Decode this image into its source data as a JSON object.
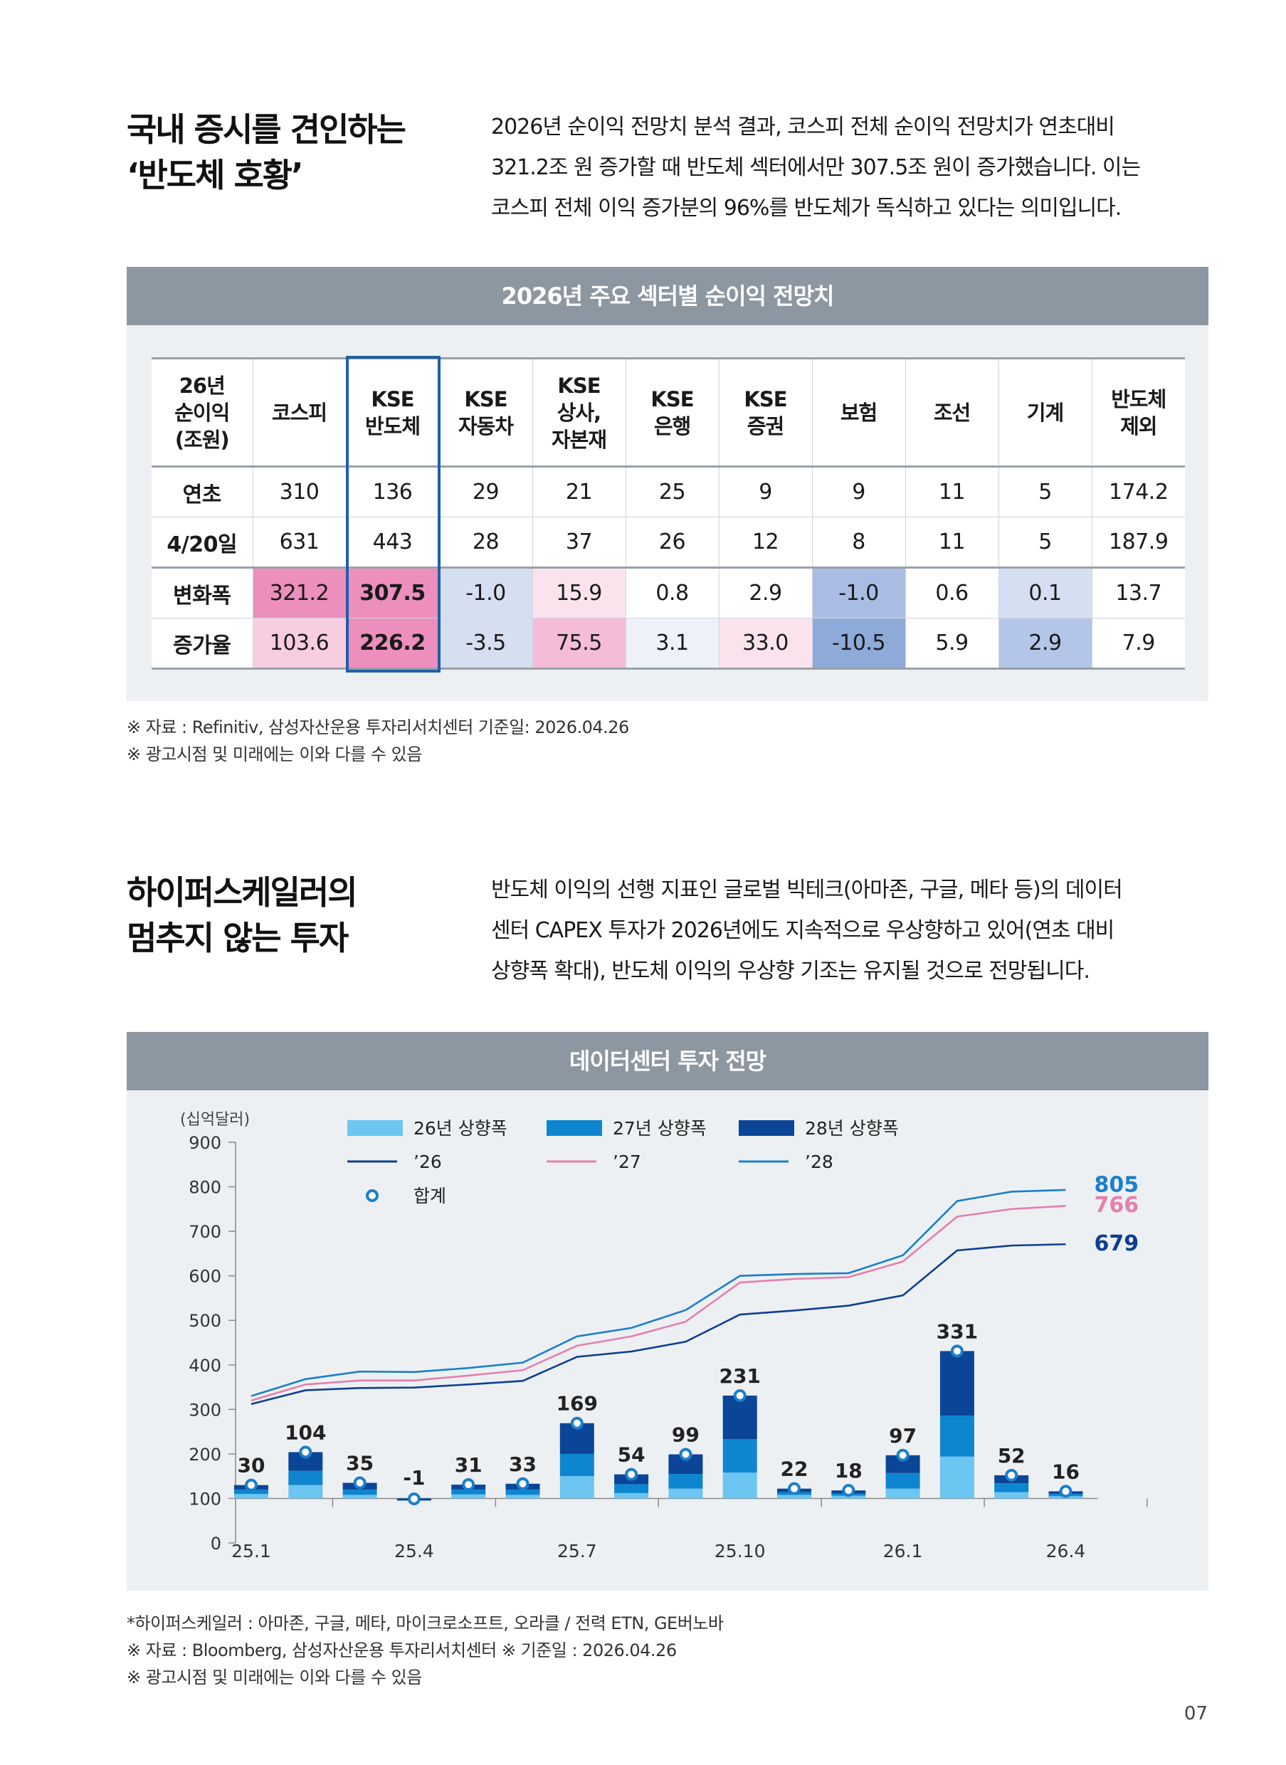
{
  "section1": {
    "heading": [
      "국내 증시를 견인하는",
      "‘반도체 호황’"
    ],
    "intro": [
      "2026년 순이익 전망치 분석 결과, 코스피 전체 순이익 전망치가 연초대비",
      "321.2조 원 증가할 때 반도체 섹터에서만 307.5조 원이 증가했습니다. 이는",
      "코스피 전체 이익 증가분의 96%를 반도체가 독식하고 있다는 의미입니다."
    ],
    "panel_title": "2026년 주요 섹터별 순이익 전망치",
    "table": {
      "corner": [
        "26년",
        "순이익",
        "(조원)"
      ],
      "columns": [
        [
          "코스피"
        ],
        [
          "KSE",
          "반도체"
        ],
        [
          "KSE",
          "자동차"
        ],
        [
          "KSE",
          "상사,",
          "자본재"
        ],
        [
          "KSE",
          "은행"
        ],
        [
          "KSE",
          "증권"
        ],
        [
          "보험"
        ],
        [
          "조선"
        ],
        [
          "기계"
        ],
        [
          "반도체",
          "제외"
        ]
      ],
      "rows": [
        {
          "label": "연초",
          "values": [
            "310",
            "136",
            "29",
            "21",
            "25",
            "9",
            "9",
            "11",
            "5",
            "174.2"
          ]
        },
        {
          "label": "4/20일",
          "values": [
            "631",
            "443",
            "28",
            "37",
            "26",
            "12",
            "8",
            "11",
            "5",
            "187.9"
          ]
        },
        {
          "label": "변화폭",
          "values": [
            "321.2",
            "307.5",
            "-1.0",
            "15.9",
            "0.8",
            "2.9",
            "-1.0",
            "0.6",
            "0.1",
            "13.7"
          ],
          "colors": [
            "#ec8fbd",
            "#ec8fbd",
            "#d6dff1",
            "#fbe3ee",
            "#ffffff",
            "#ffffff",
            "#a9bde4",
            "#ffffff",
            "#d6dff1",
            "#ffffff"
          ]
        },
        {
          "label": "증가율",
          "values": [
            "103.6",
            "226.2",
            "-3.5",
            "75.5",
            "3.1",
            "33.0",
            "-10.5",
            "5.9",
            "2.9",
            "7.9"
          ],
          "colors": [
            "#f8cde0",
            "#ec8fbd",
            "#d6dff1",
            "#f5bcd7",
            "#eef1f9",
            "#fbe3ee",
            "#8eaad9",
            "#ffffff",
            "#b3c5e8",
            "#ffffff"
          ]
        }
      ]
    },
    "notes": [
      "※ 자료 : Refinitiv, 삼성자산운용 투자리서치센터  기준일: 2026.04.26",
      "※ 광고시점 및 미래에는 이와 다를 수 있음"
    ]
  },
  "section2": {
    "heading": [
      "하이퍼스케일러의",
      "멈추지 않는 투자"
    ],
    "intro": [
      "반도체 이익의 선행 지표인 글로벌 빅테크(아마존, 구글, 메타 등)의 데이터",
      "센터 CAPEX 투자가 2026년에도 지속적으로 우상향하고 있어(연초 대비",
      "상향폭 확대), 반도체 이익의 우상향 기조는 유지될 것으로 전망됩니다."
    ],
    "panel_title": "데이터센터 투자 전망",
    "notes": [
      "*하이퍼스케일러 : 아마존, 구글, 메타, 마이크로소프트, 오라클 / 전력 ETN, GE버노바",
      "※ 자료 : Bloomberg, 삼성자산운용 투자리서치센터  ※ 기준일 : 2026.04.26",
      "※ 광고시점 및 미래에는 이와 다를 수 있음"
    ]
  },
  "chart_data": {
    "type": "bar",
    "ylabel": "(십억달러)",
    "ylim": [
      0,
      900
    ],
    "yticks": [
      0,
      100,
      200,
      300,
      400,
      500,
      600,
      700,
      800,
      900
    ],
    "x": [
      "25.1",
      "25.2",
      "25.3",
      "25.4",
      "25.5",
      "25.6",
      "25.7",
      "25.8",
      "25.9",
      "25.10",
      "25.11",
      "25.12",
      "26.1",
      "26.2",
      "26.3",
      "26.4"
    ],
    "xtick_labels": [
      "25.1",
      "",
      "",
      "25.4",
      "",
      "",
      "25.7",
      "",
      "",
      "25.10",
      "",
      "",
      "26.1",
      "",
      "",
      "26.4"
    ],
    "legend": {
      "bar26": "26년 상향폭",
      "bar27": "27년 상향폭",
      "bar28": "28년 상향폭",
      "line26": "’26",
      "line27": "’27",
      "line28": "’28",
      "total": "합계"
    },
    "bars": {
      "b26": [
        10,
        30,
        8,
        0,
        9,
        8,
        50,
        12,
        22,
        58,
        8,
        6,
        22,
        94,
        14,
        5
      ],
      "b27": [
        10,
        32,
        12,
        0,
        11,
        12,
        50,
        20,
        33,
        75,
        6,
        5,
        35,
        92,
        20,
        5
      ],
      "b28": [
        10,
        42,
        15,
        -1,
        11,
        13,
        69,
        22,
        44,
        98,
        8,
        7,
        40,
        145,
        18,
        6
      ]
    },
    "totals": [
      30,
      104,
      35,
      -1,
      31,
      33,
      169,
      54,
      99,
      231,
      22,
      18,
      97,
      331,
      52,
      16
    ],
    "series": [
      {
        "name": "’26",
        "color": "#0d3f91",
        "values": [
          312,
          343,
          348,
          349,
          356,
          364,
          418,
          430,
          452,
          513,
          522,
          533,
          556,
          657,
          668,
          671
        ]
      },
      {
        "name": "’27",
        "color": "#e47fae",
        "values": [
          320,
          356,
          365,
          365,
          376,
          388,
          443,
          464,
          497,
          585,
          593,
          597,
          632,
          733,
          750,
          757
        ]
      },
      {
        "name": "’28",
        "color": "#1a7fcb",
        "values": [
          330,
          368,
          385,
          384,
          393,
          405,
          464,
          483,
          523,
          600,
          604,
          606,
          646,
          768,
          789,
          793
        ]
      }
    ],
    "end_labels": [
      {
        "text": "805",
        "color": "#1a7fcb",
        "value": 805
      },
      {
        "text": "766",
        "color": "#e47fae",
        "value": 766
      },
      {
        "text": "679",
        "color": "#0d3f91",
        "value": 679
      }
    ],
    "colors": {
      "bar26": "#6cc6f1",
      "bar27": "#0e85cf",
      "bar28": "#0a4598"
    }
  },
  "page_number": "07"
}
